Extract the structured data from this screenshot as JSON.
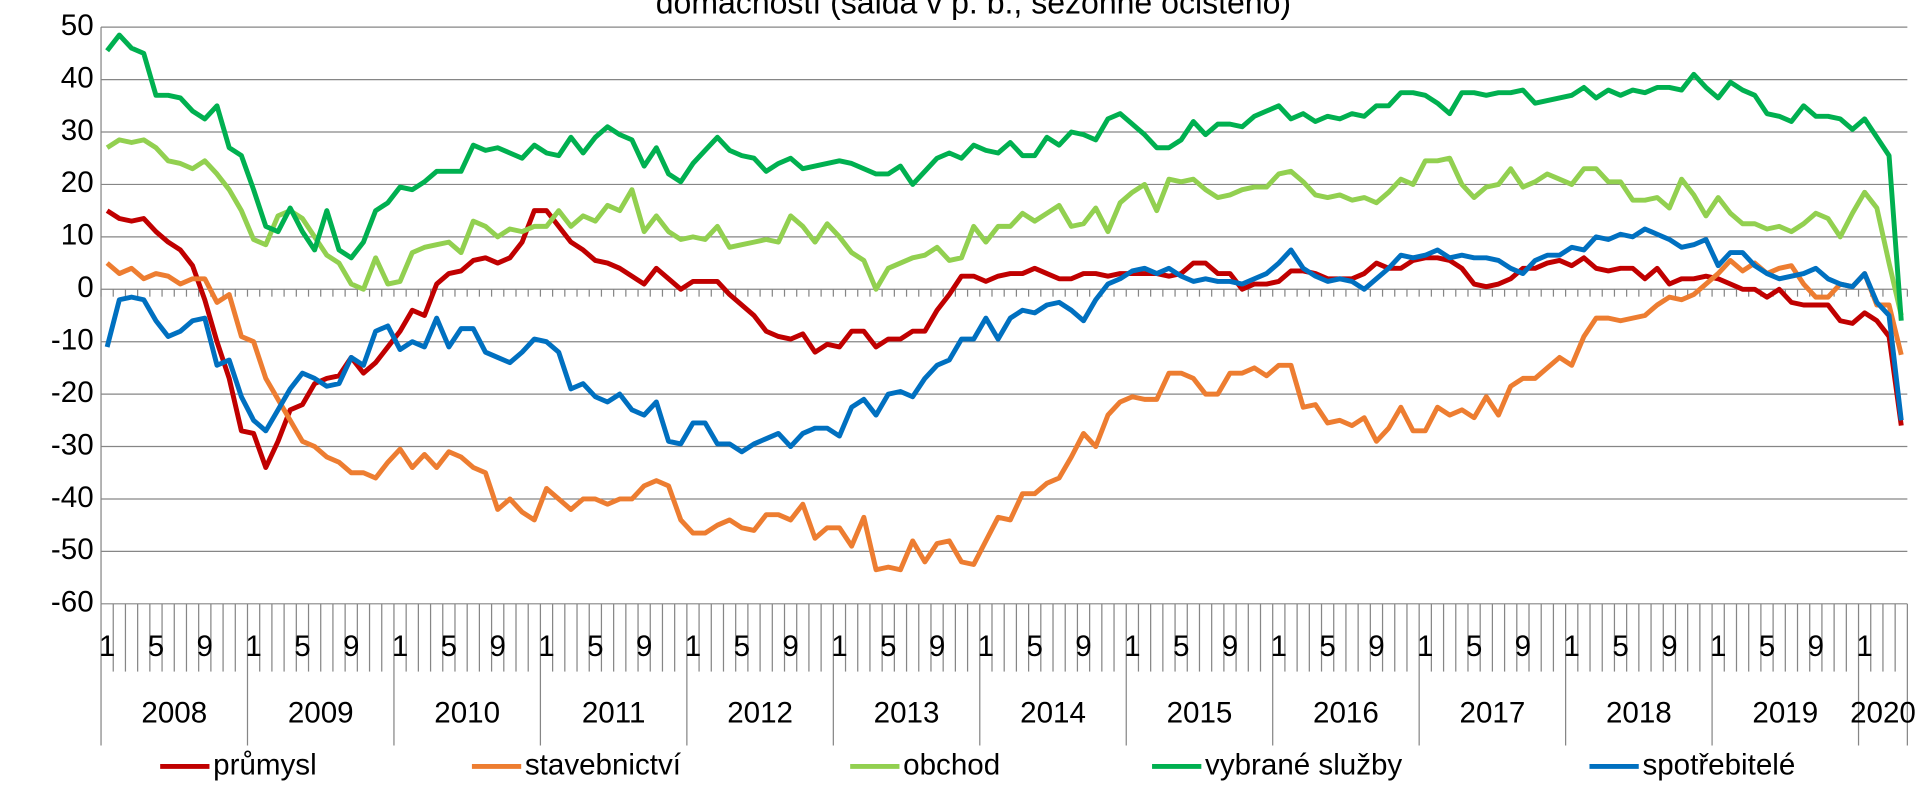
{
  "chart_data": {
    "type": "line",
    "title": "domácností (salda v p. b., sezónně očištěno)",
    "categories": [
      "1",
      null,
      null,
      null,
      "5",
      null,
      null,
      null,
      "9",
      null,
      null,
      null,
      "1",
      null,
      null,
      null,
      "5",
      null,
      null,
      null,
      "9",
      null,
      null,
      null,
      "1",
      null,
      null,
      null,
      "5",
      null,
      null,
      null,
      "9",
      null,
      null,
      null,
      "1",
      null,
      null,
      null,
      "5",
      null,
      null,
      null,
      "9",
      null,
      null,
      null,
      "1",
      null,
      null,
      null,
      "5",
      null,
      null,
      null,
      "9",
      null,
      null,
      null,
      "1",
      null,
      null,
      null,
      "5",
      null,
      null,
      null,
      "9",
      null,
      null,
      null,
      "1",
      null,
      null,
      null,
      "5",
      null,
      null,
      null,
      "9",
      null,
      null,
      null,
      "1",
      null,
      null,
      null,
      "5",
      null,
      null,
      null,
      "9",
      null,
      null,
      null,
      "1",
      null,
      null,
      null,
      "5",
      null,
      null,
      null,
      "9",
      null,
      null,
      null,
      "1",
      null,
      null,
      null,
      "5",
      null,
      null,
      null,
      "9",
      null,
      null,
      null,
      "1",
      null,
      null,
      null,
      "5",
      null,
      null,
      null,
      "9",
      null,
      null,
      null,
      "1",
      null,
      null,
      null,
      "5",
      null,
      null,
      null,
      "9",
      null,
      null,
      null,
      "1",
      null,
      null,
      null
    ],
    "years": [
      "2008",
      "2009",
      "2010",
      "2011",
      "2012",
      "2013",
      "2014",
      "2015",
      "2016",
      "2017",
      "2018",
      "2019",
      "2020"
    ],
    "ylim": [
      -60,
      50
    ],
    "yticks": [
      -60,
      -50,
      -40,
      -30,
      -20,
      -10,
      0,
      10,
      20,
      30,
      40,
      50
    ],
    "grid": true,
    "legend": "bottom",
    "series": [
      {
        "name": "průmysl",
        "color": "#c00000",
        "values": [
          15,
          13.5,
          13,
          13.5,
          11,
          9,
          7.5,
          4.5,
          -2,
          -10,
          -17,
          -27,
          -27.5,
          -34,
          -29,
          -23,
          -22,
          -18,
          -17,
          -16.5,
          -13,
          -16,
          -14,
          -11,
          -8,
          -4,
          -5,
          1,
          3,
          3.5,
          5.5,
          6,
          5,
          6,
          9,
          15,
          15,
          12,
          9,
          7.5,
          5.5,
          5,
          4,
          2.5,
          1,
          4,
          2,
          0,
          1.5,
          1.5,
          1.5,
          -1,
          -3,
          -5,
          -8,
          -9,
          -9.5,
          -8.5,
          -12,
          -10.5,
          -11,
          -8,
          -8,
          -11,
          -9.5,
          -9.5,
          -8,
          -8,
          -4,
          -1,
          2.5,
          2.5,
          1.5,
          2.5,
          3,
          3,
          4,
          3,
          2,
          2,
          3,
          3,
          2.5,
          3,
          3,
          3,
          3,
          2.5,
          3,
          5,
          5,
          3,
          3,
          0,
          1,
          1,
          1.5,
          3.5,
          3.5,
          3,
          2,
          2,
          2,
          3,
          5,
          4,
          4,
          5.5,
          6,
          6,
          5.5,
          4,
          1,
          0.5,
          1,
          2,
          4,
          4,
          5,
          5.5,
          4.5,
          6,
          4,
          3.5,
          4,
          4,
          2,
          4,
          1,
          2,
          2,
          2.5,
          2,
          1,
          0,
          0,
          -1.5,
          0,
          -2.5,
          -3,
          -3,
          -3,
          -6,
          -6.5,
          -4.5,
          -6,
          -9,
          -26
        ]
      },
      {
        "name": "stavebnictví",
        "color": "#ed7d31",
        "values": [
          5,
          3,
          4,
          2,
          3,
          2.5,
          1,
          2,
          2,
          -2.5,
          -1,
          -9,
          -10,
          -17,
          -21,
          -25,
          -29,
          -30,
          -32,
          -33,
          -35,
          -35,
          -36,
          -33,
          -30.5,
          -34,
          -31.5,
          -34,
          -31,
          -32,
          -34,
          -35,
          -42,
          -40,
          -42.5,
          -44,
          -38,
          -40,
          -42,
          -40,
          -40,
          -41,
          -40,
          -40,
          -37.5,
          -36.5,
          -37.5,
          -44,
          -46.5,
          -46.5,
          -45,
          -44,
          -45.5,
          -46,
          -43,
          -43,
          -44,
          -41,
          -47.5,
          -45.5,
          -45.5,
          -49,
          -43.5,
          -53.5,
          -53,
          -53.5,
          -48,
          -52,
          -48.5,
          -48,
          -52,
          -52.5,
          -48,
          -43.5,
          -44,
          -39,
          -39,
          -37,
          -36,
          -32,
          -27.5,
          -30,
          -24,
          -21.5,
          -20.5,
          -21,
          -21,
          -16,
          -16,
          -17,
          -20,
          -20,
          -16,
          -16,
          -15,
          -16.5,
          -14.5,
          -14.5,
          -22.5,
          -22,
          -25.5,
          -25,
          -26,
          -24.5,
          -29,
          -26.5,
          -22.5,
          -27,
          -27,
          -22.5,
          -24,
          -23,
          -24.5,
          -20.5,
          -24,
          -18.5,
          -17,
          -17,
          -15,
          -13,
          -14.5,
          -9,
          -5.5,
          -5.5,
          -6,
          -5.5,
          -5,
          -3,
          -1.5,
          -2,
          -1,
          1,
          3,
          5.5,
          3.5,
          5,
          3,
          4,
          4.5,
          1,
          -1.5,
          -1.5,
          1,
          0.5,
          3,
          -3,
          -3,
          -12.5
        ]
      },
      {
        "name": "obchod",
        "color": "#92d050",
        "values": [
          27,
          28.5,
          28,
          28.5,
          27,
          24.5,
          24,
          23,
          24.5,
          22,
          19,
          15,
          9.5,
          8.5,
          14,
          15,
          13.5,
          10,
          6.5,
          5,
          1,
          0,
          6,
          1,
          1.5,
          7,
          8,
          8.5,
          9,
          7,
          13,
          12,
          10,
          11.5,
          11,
          12,
          12,
          15,
          12,
          14,
          13,
          16,
          15,
          19,
          11,
          14,
          11,
          9.5,
          10,
          9.5,
          12,
          8,
          8.5,
          9,
          9.5,
          9,
          14,
          12,
          9,
          12.5,
          10,
          7,
          5.5,
          0,
          4,
          5,
          6,
          6.5,
          8,
          5.5,
          6,
          12,
          9,
          12,
          12,
          14.5,
          13,
          14.5,
          16,
          12,
          12.5,
          15.5,
          11,
          16.5,
          18.5,
          20,
          15,
          21,
          20.5,
          21,
          19,
          17.5,
          18,
          19,
          19.5,
          19.5,
          22,
          22.5,
          20.5,
          18,
          17.5,
          18,
          17,
          17.5,
          16.5,
          18.5,
          21,
          20,
          24.5,
          24.5,
          25,
          20,
          17.5,
          19.5,
          20,
          23,
          19.5,
          20.5,
          22,
          21,
          20,
          23,
          23,
          20.5,
          20.5,
          17,
          17,
          17.5,
          15.5,
          21,
          18,
          14,
          17.5,
          14.5,
          12.5,
          12.5,
          11.5,
          12,
          11,
          12.5,
          14.5,
          13.5,
          10,
          14.5,
          18.5,
          15.5,
          5,
          -5
        ]
      },
      {
        "name": "vybrané služby",
        "color": "#00b050",
        "values": [
          45.5,
          48.5,
          46,
          45,
          37,
          37,
          36.5,
          34,
          32.5,
          35,
          27,
          25.5,
          19,
          12,
          11,
          15.5,
          11,
          7.5,
          15,
          7.5,
          6,
          9,
          15,
          16.5,
          19.5,
          19,
          20.5,
          22.5,
          22.5,
          22.5,
          27.5,
          26.5,
          27,
          26,
          25,
          27.5,
          26,
          25.5,
          29,
          26,
          29,
          31,
          29.5,
          28.5,
          23.5,
          27,
          22,
          20.5,
          24,
          26.5,
          29,
          26.5,
          25.5,
          25,
          22.5,
          24,
          25,
          23,
          23.5,
          24,
          24.5,
          24,
          23,
          22,
          22,
          23.5,
          20,
          22.5,
          25,
          26,
          25,
          27.5,
          26.5,
          26,
          28,
          25.5,
          25.5,
          29,
          27.5,
          30,
          29.5,
          28.5,
          32.5,
          33.5,
          31.5,
          29.5,
          27,
          27,
          28.5,
          32,
          29.5,
          31.5,
          31.5,
          31,
          33,
          34,
          35,
          32.5,
          33.5,
          32,
          33,
          32.5,
          33.5,
          33,
          35,
          35,
          37.5,
          37.5,
          37,
          35.5,
          33.5,
          37.5,
          37.5,
          37,
          37.5,
          37.5,
          38,
          35.5,
          36,
          36.5,
          37,
          38.5,
          36.5,
          38,
          37,
          38,
          37.5,
          38.5,
          38.5,
          38,
          41,
          38.5,
          36.5,
          39.5,
          38,
          37,
          33.5,
          33,
          32,
          35,
          33,
          33,
          32.5,
          30.5,
          32.5,
          29,
          25.5,
          -6
        ]
      },
      {
        "name": "spotřebitelé",
        "color": "#0070c0",
        "values": [
          -11,
          -2,
          -1.5,
          -2,
          -6,
          -9,
          -8,
          -6,
          -5.5,
          -14.5,
          -13.5,
          -20.5,
          -25,
          -27,
          -23,
          -19,
          -16,
          -17,
          -18.5,
          -18,
          -13,
          -14.5,
          -8,
          -7,
          -11.5,
          -10,
          -11,
          -5.5,
          -11,
          -7.5,
          -7.5,
          -12,
          -13,
          -14,
          -12,
          -9.5,
          -10,
          -12,
          -19,
          -18,
          -20.5,
          -21.5,
          -20,
          -23,
          -24,
          -21.5,
          -29,
          -29.5,
          -25.5,
          -25.5,
          -29.5,
          -29.5,
          -31,
          -29.5,
          -28.5,
          -27.5,
          -30,
          -27.5,
          -26.5,
          -26.5,
          -28,
          -22.5,
          -21,
          -24,
          -20,
          -19.5,
          -20.5,
          -17,
          -14.5,
          -13.5,
          -9.5,
          -9.5,
          -5.5,
          -9.5,
          -5.5,
          -4,
          -4.5,
          -3,
          -2.5,
          -4,
          -6,
          -2,
          1,
          2,
          3.5,
          4,
          3,
          4,
          2.5,
          1.5,
          2,
          1.5,
          1.5,
          1,
          2,
          3,
          5,
          7.5,
          4,
          2.5,
          1.5,
          2,
          1.5,
          0,
          2,
          4,
          6.5,
          6,
          6.5,
          7.5,
          6,
          6.5,
          6,
          6,
          5.5,
          4,
          3,
          5.5,
          6.5,
          6.5,
          8,
          7.5,
          10,
          9.5,
          10.5,
          10,
          11.5,
          10.5,
          9.5,
          8,
          8.5,
          9.5,
          4.5,
          7,
          7,
          4.5,
          3,
          2,
          2.5,
          3,
          4,
          2,
          1,
          0.5,
          3,
          -2.5,
          -5,
          -25
        ]
      }
    ]
  }
}
